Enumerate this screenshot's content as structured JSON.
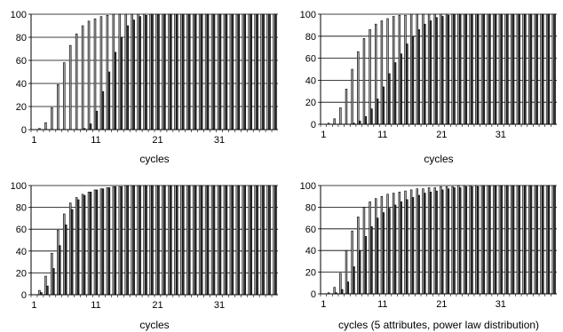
{
  "chart_data": [
    {
      "type": "bar",
      "xlabel": "cycles",
      "ylim": [
        0,
        100
      ],
      "yticks": [
        0,
        20,
        40,
        60,
        80,
        100
      ],
      "xticks": [
        1,
        11,
        21,
        31
      ],
      "x_range": [
        1,
        40
      ],
      "grid": "horizontal",
      "series": [
        {
          "color": "#a6a6a6",
          "values": [
            0,
            1,
            6,
            19,
            39,
            58,
            73,
            83,
            90,
            94,
            96,
            98,
            99,
            100,
            100,
            100,
            100,
            100,
            100,
            100,
            100,
            100,
            100,
            100,
            100,
            100,
            100,
            100,
            100,
            100,
            100,
            100,
            100,
            100,
            100,
            100,
            100,
            100,
            100,
            100
          ]
        },
        {
          "color": "#333333",
          "values": [
            0,
            0,
            0,
            0,
            0,
            0,
            0,
            0,
            1,
            5,
            16,
            33,
            50,
            67,
            80,
            90,
            95,
            98,
            99,
            100,
            100,
            100,
            100,
            100,
            100,
            100,
            100,
            100,
            100,
            100,
            100,
            100,
            100,
            100,
            100,
            100,
            100,
            100,
            100,
            100
          ]
        }
      ]
    },
    {
      "type": "bar",
      "xlabel": "cycles",
      "ylim": [
        0,
        100
      ],
      "yticks": [
        0,
        20,
        40,
        60,
        80,
        100
      ],
      "xticks": [
        1,
        11,
        21,
        31
      ],
      "x_range": [
        1,
        40
      ],
      "grid": "horizontal",
      "series": [
        {
          "color": "#a6a6a6",
          "values": [
            0,
            1,
            5,
            15,
            32,
            50,
            66,
            78,
            86,
            91,
            94,
            96,
            98,
            99,
            99,
            100,
            100,
            100,
            100,
            100,
            100,
            100,
            100,
            100,
            100,
            100,
            100,
            100,
            100,
            100,
            100,
            100,
            100,
            100,
            100,
            100,
            100,
            100,
            100,
            100
          ]
        },
        {
          "color": "#333333",
          "values": [
            0,
            0,
            0,
            0,
            0,
            1,
            3,
            7,
            14,
            23,
            34,
            46,
            56,
            64,
            73,
            80,
            86,
            91,
            94,
            97,
            98,
            99,
            100,
            100,
            100,
            100,
            100,
            100,
            100,
            100,
            100,
            100,
            100,
            100,
            100,
            100,
            100,
            100,
            100,
            100
          ]
        }
      ]
    },
    {
      "type": "bar",
      "xlabel": "cycles",
      "ylim": [
        0,
        100
      ],
      "yticks": [
        0,
        20,
        40,
        60,
        80,
        100
      ],
      "xticks": [
        1,
        11,
        21,
        31
      ],
      "x_range": [
        1,
        40
      ],
      "grid": "horizontal",
      "series": [
        {
          "color": "#a6a6a6",
          "values": [
            0,
            4,
            17,
            38,
            59,
            74,
            84,
            89,
            92,
            94,
            96,
            97,
            98,
            99,
            99,
            100,
            100,
            100,
            100,
            100,
            100,
            100,
            100,
            100,
            100,
            100,
            100,
            100,
            100,
            100,
            100,
            100,
            100,
            100,
            100,
            100,
            100,
            100,
            100,
            100
          ]
        },
        {
          "color": "#333333",
          "values": [
            0,
            2,
            8,
            24,
            45,
            64,
            78,
            87,
            91,
            94,
            96,
            97,
            98,
            99,
            99,
            100,
            100,
            100,
            100,
            100,
            100,
            100,
            100,
            100,
            100,
            100,
            100,
            100,
            100,
            100,
            100,
            100,
            100,
            100,
            100,
            100,
            100,
            100,
            100,
            100
          ]
        }
      ]
    },
    {
      "type": "bar",
      "xlabel": "cycles (5 attributes, power law distribution)",
      "ylim": [
        0,
        100
      ],
      "yticks": [
        0,
        20,
        40,
        60,
        80,
        100
      ],
      "xticks": [
        1,
        11,
        21,
        31
      ],
      "x_range": [
        1,
        40
      ],
      "grid": "horizontal",
      "series": [
        {
          "color": "#a6a6a6",
          "values": [
            0,
            1,
            6,
            19,
            40,
            58,
            71,
            80,
            85,
            88,
            90,
            92,
            93,
            94,
            95,
            96,
            97,
            97,
            98,
            98,
            99,
            99,
            99,
            100,
            100,
            100,
            100,
            100,
            100,
            100,
            100,
            100,
            100,
            100,
            100,
            100,
            100,
            100,
            100,
            100
          ]
        },
        {
          "color": "#333333",
          "values": [
            0,
            0,
            1,
            4,
            11,
            25,
            40,
            53,
            62,
            70,
            75,
            79,
            82,
            85,
            87,
            89,
            91,
            93,
            94,
            95,
            96,
            97,
            98,
            98,
            99,
            99,
            99,
            100,
            100,
            100,
            100,
            100,
            100,
            100,
            100,
            100,
            100,
            100,
            100,
            100
          ]
        }
      ]
    }
  ]
}
